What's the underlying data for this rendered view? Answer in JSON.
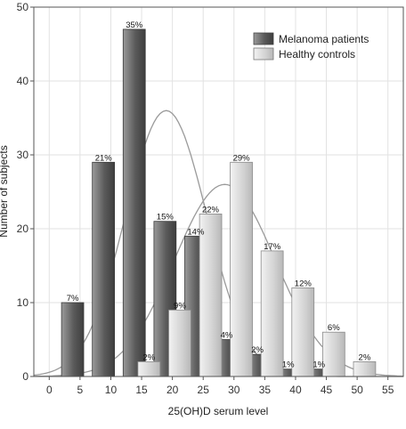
{
  "chart_data": {
    "type": "bar",
    "xlabel": "25(OH)D serum level",
    "ylabel": "Number of subjects",
    "xlim": [
      -2.5,
      57.5
    ],
    "ylim": [
      0,
      50
    ],
    "x_ticks": [
      0,
      5,
      10,
      15,
      20,
      25,
      30,
      35,
      40,
      45,
      50,
      55
    ],
    "y_ticks": [
      0,
      10,
      20,
      30,
      40,
      50
    ],
    "grid": true,
    "legend_position": "top-right",
    "series": [
      {
        "name": "Melanoma patients",
        "color": "#6a6a6a",
        "bars": [
          {
            "x": 5,
            "value": 10,
            "label": "7%"
          },
          {
            "x": 10,
            "value": 29,
            "label": "21%"
          },
          {
            "x": 15,
            "value": 47,
            "label": "35%"
          },
          {
            "x": 20,
            "value": 21,
            "label": "15%"
          },
          {
            "x": 25,
            "value": 19,
            "label": "14%"
          },
          {
            "x": 30,
            "value": 5,
            "label": "4%"
          },
          {
            "x": 35,
            "value": 3,
            "label": "2%"
          },
          {
            "x": 40,
            "value": 1,
            "label": "1%"
          },
          {
            "x": 45,
            "value": 1,
            "label": "1%"
          }
        ],
        "curve": {
          "mean": 19,
          "sd": 6.6,
          "peak": 36
        }
      },
      {
        "name": "Healthy controls",
        "color": "#c8c8c8",
        "bars": [
          {
            "x": 15,
            "value": 2,
            "label": "2%"
          },
          {
            "x": 20,
            "value": 9,
            "label": "9%"
          },
          {
            "x": 25,
            "value": 22,
            "label": "22%"
          },
          {
            "x": 30,
            "value": 29,
            "label": "29%"
          },
          {
            "x": 35,
            "value": 17,
            "label": "17%"
          },
          {
            "x": 40,
            "value": 12,
            "label": "12%"
          },
          {
            "x": 45,
            "value": 6,
            "label": "6%"
          },
          {
            "x": 50,
            "value": 2,
            "label": "2%"
          }
        ],
        "curve": {
          "mean": 28.5,
          "sd": 8.2,
          "peak": 26
        }
      }
    ]
  }
}
